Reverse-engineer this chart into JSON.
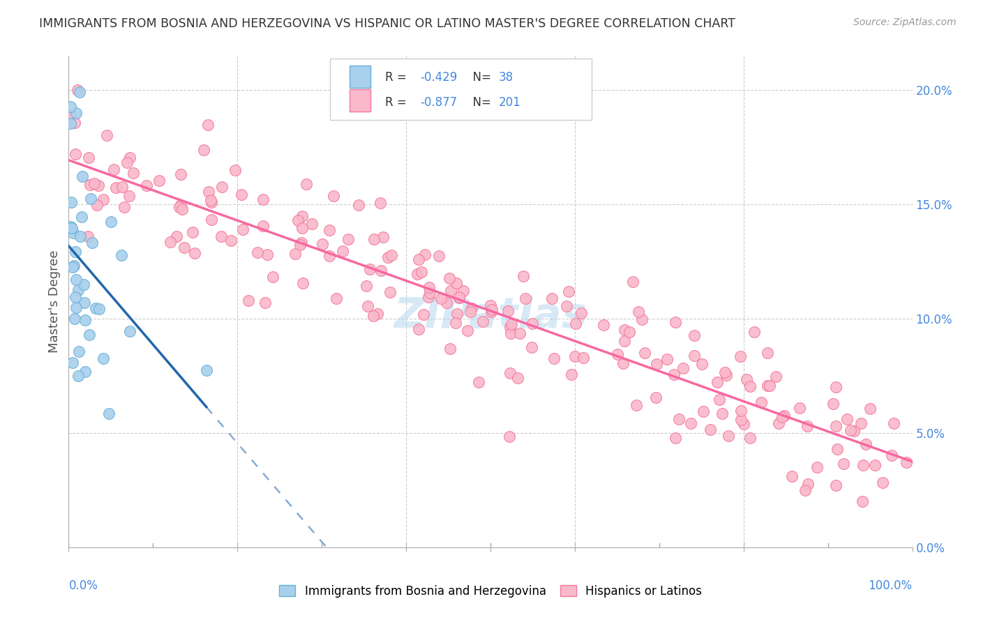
{
  "title": "IMMIGRANTS FROM BOSNIA AND HERZEGOVINA VS HISPANIC OR LATINO MASTER'S DEGREE CORRELATION CHART",
  "source": "Source: ZipAtlas.com",
  "ylabel": "Master's Degree",
  "blue_R": "-0.429",
  "blue_N": "38",
  "pink_R": "-0.877",
  "pink_N": "201",
  "legend_labels": [
    "Immigrants from Bosnia and Herzegovina",
    "Hispanics or Latinos"
  ],
  "ytick_values": [
    0.0,
    0.05,
    0.1,
    0.15,
    0.2
  ],
  "blue_color": "#a8d0ed",
  "pink_color": "#f9b8cb",
  "blue_edge_color": "#6aaed6",
  "pink_edge_color": "#f4789a",
  "blue_line_color": "#2166ac",
  "pink_line_color": "#f768a1",
  "watermark": "ZIPatlas",
  "watermark_color": "#b8d8f0",
  "background_color": "#ffffff",
  "xlim": [
    0.0,
    1.0
  ],
  "ylim": [
    0.0,
    0.215
  ],
  "blue_intercept": 0.135,
  "blue_slope": -0.7,
  "pink_intercept": 0.172,
  "pink_slope": -0.135,
  "blue_seed": 15,
  "pink_seed": 7
}
